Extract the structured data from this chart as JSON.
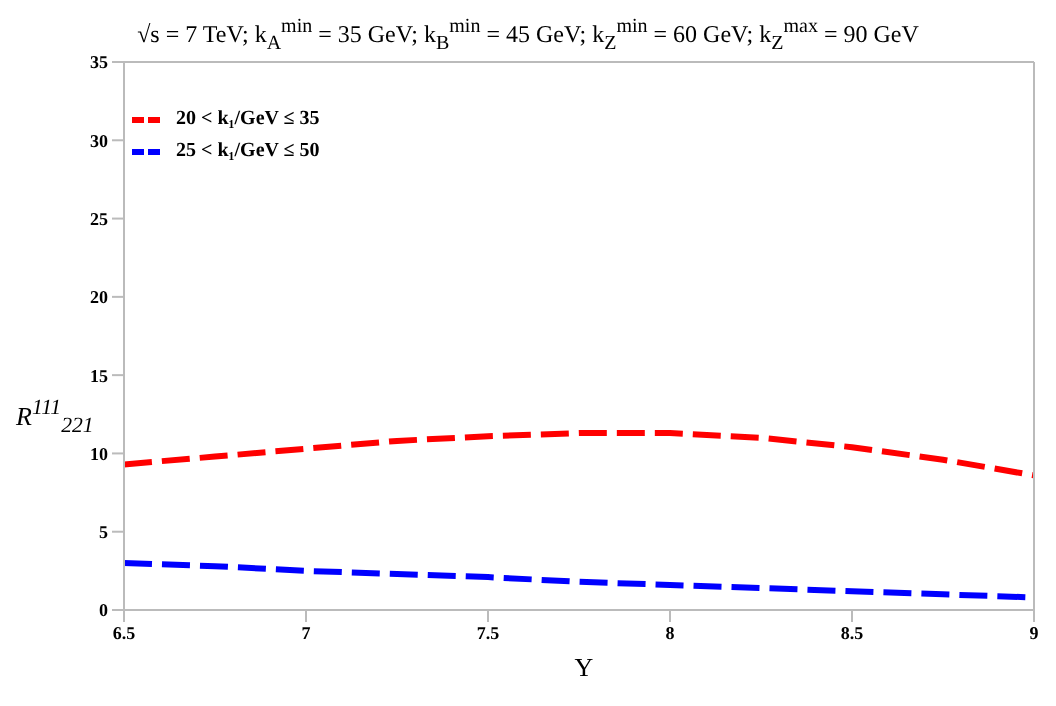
{
  "chart_data": {
    "type": "line",
    "title": "√s = 7 TeV;   k$_{A}$$^{min}$ = 35 GeV;   k$_{B}$$^{min}$ = 45 GeV;   k$_{Z}$$^{min}$ = 60 GeV;   k$_{Z}$$^{max}$ = 90 GeV",
    "xlabel": "Y",
    "ylabel": "R$^{111}$$_{221}$",
    "x": [
      6.5,
      6.75,
      7,
      7.25,
      7.5,
      7.75,
      8,
      8.25,
      8.5,
      8.75,
      9
    ],
    "series": [
      {
        "name": "20 < k₁/GeV ≤ 35",
        "color": "#ff0000",
        "line_style": "dashed",
        "values": [
          9.3,
          9.8,
          10.3,
          10.8,
          11.1,
          11.3,
          11.3,
          11.0,
          10.4,
          9.6,
          8.6
        ]
      },
      {
        "name": "25 < k₁/GeV ≤ 50",
        "color": "#0000ff",
        "line_style": "dashed",
        "values": [
          3.0,
          2.8,
          2.5,
          2.3,
          2.1,
          1.8,
          1.6,
          1.4,
          1.2,
          1.0,
          0.8
        ]
      }
    ],
    "xlim": [
      6.5,
      9
    ],
    "xticks": [
      6.5,
      7,
      7.5,
      8,
      8.5,
      9
    ],
    "ylim": [
      0,
      35
    ],
    "yticks": [
      0,
      5,
      10,
      15,
      20,
      25,
      30,
      35
    ],
    "legend": "top left",
    "marker": "none"
  }
}
